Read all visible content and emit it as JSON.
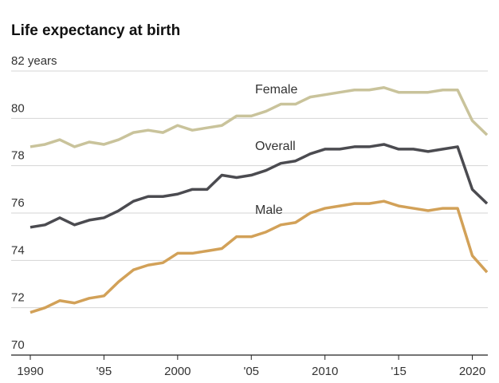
{
  "chart_data": {
    "type": "line",
    "title": "Life expectancy at birth",
    "x": [
      1990,
      1991,
      1992,
      1993,
      1994,
      1995,
      1996,
      1997,
      1998,
      1999,
      2000,
      2001,
      2002,
      2003,
      2004,
      2005,
      2006,
      2007,
      2008,
      2009,
      2010,
      2011,
      2012,
      2013,
      2014,
      2015,
      2016,
      2017,
      2018,
      2019,
      2020,
      2021
    ],
    "series": [
      {
        "name": "Female",
        "color": "#c9c39b",
        "values": [
          78.8,
          78.9,
          79.1,
          78.8,
          79.0,
          78.9,
          79.1,
          79.4,
          79.5,
          79.4,
          79.7,
          79.5,
          79.6,
          79.7,
          80.1,
          80.1,
          80.3,
          80.6,
          80.6,
          80.9,
          81.0,
          81.1,
          81.2,
          81.2,
          81.3,
          81.1,
          81.1,
          81.1,
          81.2,
          81.2,
          79.9,
          79.3
        ]
      },
      {
        "name": "Overall",
        "color": "#4b4b50",
        "values": [
          75.4,
          75.5,
          75.8,
          75.5,
          75.7,
          75.8,
          76.1,
          76.5,
          76.7,
          76.7,
          76.8,
          77.0,
          77.0,
          77.6,
          77.5,
          77.6,
          77.8,
          78.1,
          78.2,
          78.5,
          78.7,
          78.7,
          78.8,
          78.8,
          78.9,
          78.7,
          78.7,
          78.6,
          78.7,
          78.8,
          77.0,
          76.4
        ]
      },
      {
        "name": "Male",
        "color": "#d2a158",
        "values": [
          71.8,
          72.0,
          72.3,
          72.2,
          72.4,
          72.5,
          73.1,
          73.6,
          73.8,
          73.9,
          74.3,
          74.3,
          74.4,
          74.5,
          75.0,
          75.0,
          75.2,
          75.5,
          75.6,
          76.0,
          76.2,
          76.3,
          76.4,
          76.4,
          76.5,
          76.3,
          76.2,
          76.1,
          76.2,
          76.2,
          74.2,
          73.5
        ]
      }
    ],
    "xlim": [
      1990,
      2021
    ],
    "xticks": [
      1990,
      {
        "value": 1995,
        "label": "'95"
      },
      2000,
      {
        "value": 2005,
        "label": "'05"
      },
      2010,
      {
        "value": 2015,
        "label": "'15"
      },
      2020
    ],
    "ylim": [
      70,
      82
    ],
    "yticks": [
      70,
      72,
      74,
      76,
      78,
      80,
      {
        "value": 82,
        "label": "82 years"
      }
    ],
    "grid": true
  }
}
